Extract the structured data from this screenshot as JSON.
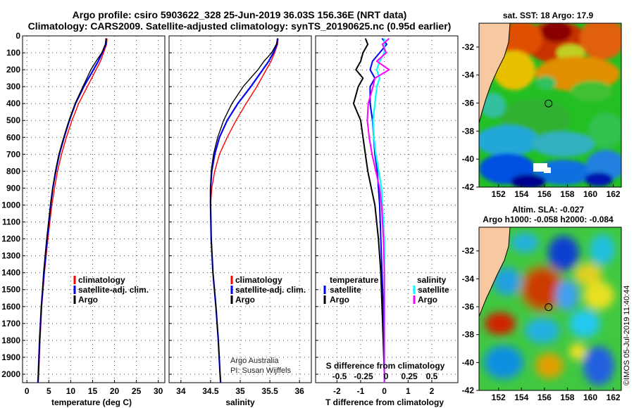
{
  "header": {
    "title_line1": "Argo profile: csiro 5903622_328 25-Jun-2019 36.03S 156.36E (NRT data)",
    "title_line2": "Climatology: CARS2009. Satellite-adjusted climatology: synTS_20190625.nc (0.95d earlier)"
  },
  "colors": {
    "climatology": "#ff0000",
    "satellite": "#0000ff",
    "argo": "#000000",
    "sal_satellite": "#00ffff",
    "sal_argo": "#ff00ff",
    "land": "#f7c9a0"
  },
  "chart_data": [
    {
      "type": "line",
      "name": "temperature",
      "xlabel": "temperature (deg C)",
      "xlim": [
        -1,
        31.5
      ],
      "xticks": [
        0,
        5,
        10,
        15,
        20,
        25,
        30
      ],
      "ylim": [
        2050,
        0
      ],
      "yticks": [
        0,
        100,
        200,
        300,
        400,
        500,
        600,
        700,
        800,
        900,
        1000,
        1100,
        1200,
        1300,
        1400,
        1500,
        1600,
        1700,
        1800,
        1900,
        2000
      ],
      "legend": [
        "climatology",
        "satellite-adj. clim.",
        "Argo"
      ],
      "series": [
        {
          "name": "climatology",
          "depth": [
            15,
            50,
            100,
            150,
            200,
            300,
            400,
            500,
            600,
            700,
            800,
            900,
            1000,
            1200,
            1400,
            1600,
            1800,
            2000,
            2050
          ],
          "values": [
            18.3,
            18.2,
            17.5,
            16.8,
            15.8,
            13.8,
            11.8,
            10.3,
            9.0,
            7.9,
            7.0,
            6.3,
            5.7,
            4.8,
            4.0,
            3.4,
            3.0,
            2.7,
            2.6
          ]
        },
        {
          "name": "satellite-adj. clim.",
          "depth": [
            15,
            50,
            100,
            150,
            200,
            300,
            400,
            500,
            600,
            700,
            800,
            900,
            1000,
            1200,
            1400,
            1600,
            1800,
            2000,
            2050
          ],
          "values": [
            18.1,
            18.0,
            17.2,
            16.3,
            15.2,
            13.0,
            11.1,
            9.7,
            8.5,
            7.4,
            6.6,
            5.9,
            5.4,
            4.6,
            3.9,
            3.3,
            2.9,
            2.6,
            2.5
          ]
        },
        {
          "name": "Argo",
          "depth": [
            15,
            50,
            100,
            150,
            200,
            300,
            400,
            500,
            600,
            700,
            800,
            900,
            1000,
            1200,
            1400,
            1600,
            1800,
            2000,
            2050
          ],
          "values": [
            18.1,
            17.9,
            17.1,
            15.8,
            14.6,
            12.8,
            11.0,
            9.6,
            8.4,
            7.3,
            6.5,
            5.9,
            5.4,
            4.5,
            3.8,
            3.3,
            2.9,
            2.6,
            2.5
          ]
        }
      ]
    },
    {
      "type": "line",
      "name": "salinity",
      "xlabel": "salinity",
      "xlim": [
        33.8,
        36.2
      ],
      "xticks": [
        34,
        34.5,
        35,
        35.5,
        36
      ],
      "ylim": [
        2050,
        0
      ],
      "legend": [
        "climatology",
        "satellite-adj. clim.",
        "Argo"
      ],
      "credit_line1": "Argo Australia",
      "credit_line2": "PI: Susan Wijffels",
      "series": [
        {
          "name": "climatology",
          "depth": [
            15,
            50,
            100,
            150,
            200,
            300,
            400,
            500,
            600,
            700,
            800,
            900,
            1000,
            1200,
            1400,
            1600,
            1800,
            2000,
            2050
          ],
          "values": [
            35.64,
            35.63,
            35.58,
            35.52,
            35.44,
            35.28,
            35.1,
            34.93,
            34.78,
            34.65,
            34.57,
            34.52,
            34.5,
            34.51,
            34.54,
            34.59,
            34.63,
            34.66,
            34.67
          ]
        },
        {
          "name": "satellite-adj. clim.",
          "depth": [
            15,
            50,
            100,
            150,
            200,
            300,
            400,
            500,
            600,
            700,
            800,
            900,
            1000,
            1200,
            1400,
            1600,
            1800,
            2000,
            2050
          ],
          "values": [
            35.63,
            35.62,
            35.56,
            35.48,
            35.38,
            35.18,
            34.96,
            34.78,
            34.65,
            34.57,
            34.52,
            34.5,
            34.5,
            34.51,
            34.54,
            34.59,
            34.63,
            34.66,
            34.67
          ]
        },
        {
          "name": "Argo",
          "depth": [
            15,
            50,
            100,
            150,
            200,
            300,
            400,
            500,
            600,
            700,
            800,
            900,
            1000,
            1200,
            1400,
            1600,
            1800,
            2000,
            2050
          ],
          "values": [
            35.63,
            35.61,
            35.53,
            35.4,
            35.3,
            35.05,
            34.86,
            34.72,
            34.62,
            34.55,
            34.51,
            34.5,
            34.5,
            34.51,
            34.54,
            34.59,
            34.63,
            34.66,
            34.67
          ]
        }
      ]
    },
    {
      "type": "line",
      "name": "differences",
      "xlabel": "T difference from climatology",
      "xlim": [
        -2.9,
        3.1
      ],
      "xticks": [
        -2,
        -1,
        0,
        1,
        2
      ],
      "xtick_labels": [
        "-2",
        "-1",
        "0",
        "1",
        "2"
      ],
      "s_axis_label": "S difference from climatology",
      "s_tick_labels": [
        "-0.5",
        "-0.25",
        "0",
        "0.25",
        "0.5"
      ],
      "ylim": [
        2050,
        0
      ],
      "legend_left_title": "temperature",
      "legend_right_title": "salinity",
      "legend_left": [
        "satellite",
        "Argo"
      ],
      "legend_right": [
        "satellite",
        "Argo"
      ],
      "series": [
        {
          "name": "T satellite",
          "depth": [
            15,
            50,
            100,
            150,
            200,
            250,
            300,
            400,
            500,
            600,
            700,
            800,
            900,
            1000,
            1200,
            1400,
            1600,
            1800,
            2000,
            2050
          ],
          "values": [
            -0.1,
            0.1,
            -0.2,
            -0.5,
            -0.6,
            -0.4,
            -0.6,
            -0.6,
            -0.5,
            -0.45,
            -0.4,
            -0.3,
            -0.25,
            -0.2,
            -0.15,
            -0.1,
            -0.05,
            -0.03,
            0.0,
            0.0
          ]
        },
        {
          "name": "T Argo",
          "depth": [
            15,
            50,
            100,
            150,
            200,
            250,
            300,
            400,
            500,
            600,
            700,
            800,
            900,
            1000,
            1200,
            1400,
            1600,
            1800,
            2000,
            2050
          ],
          "values": [
            -0.8,
            -0.7,
            -0.9,
            -1.0,
            -1.2,
            -0.9,
            -1.1,
            -1.3,
            -1.0,
            -0.9,
            -0.8,
            -0.7,
            -0.55,
            -0.4,
            -0.25,
            -0.15,
            -0.1,
            -0.05,
            0.0,
            0.0
          ]
        },
        {
          "name": "S satellite",
          "depth": [
            15,
            50,
            100,
            150,
            200,
            250,
            300,
            400,
            500,
            600,
            700,
            800,
            900,
            1000,
            1200,
            1400,
            1600,
            1800,
            2000,
            2050
          ],
          "values": [
            0.0,
            0.0,
            0.0,
            -0.05,
            -0.08,
            -0.05,
            -0.08,
            -0.1,
            -0.12,
            -0.11,
            -0.09,
            -0.06,
            -0.03,
            -0.02,
            0.0,
            0.0,
            0.0,
            0.0,
            0.0,
            0.0
          ]
        },
        {
          "name": "S Argo",
          "depth": [
            15,
            50,
            100,
            150,
            200,
            250,
            300,
            400,
            500,
            600,
            700,
            800,
            900,
            1000,
            1200,
            1400,
            1600,
            1800,
            2000,
            2050
          ],
          "values": [
            0.05,
            -0.02,
            0.02,
            -0.08,
            0.05,
            -0.1,
            -0.12,
            -0.17,
            -0.18,
            -0.16,
            -0.13,
            -0.09,
            -0.05,
            -0.03,
            -0.01,
            0.0,
            0.0,
            0.0,
            0.0,
            0.0
          ]
        }
      ]
    },
    {
      "type": "heatmap",
      "name": "sst_map",
      "title": "sat. SST: 18 Argo: 17.9",
      "xticks": [
        152,
        154,
        156,
        158,
        160,
        162
      ],
      "yticks": [
        -32,
        -34,
        -36,
        -38,
        -40,
        -42
      ],
      "xlim": [
        150.3,
        162.7
      ],
      "ylim": [
        -42,
        -30.3
      ],
      "profile_location": [
        156.36,
        -36.03
      ]
    },
    {
      "type": "heatmap",
      "name": "sla_map",
      "title_line1": "Altim. SLA: -0.027",
      "title_line2": "Argo h1000: -0.058 h2000: -0.084",
      "xticks": [
        152,
        154,
        156,
        158,
        160,
        162
      ],
      "yticks": [
        -32,
        -34,
        -36,
        -38,
        -40,
        -42
      ],
      "xlim": [
        150.3,
        162.7
      ],
      "ylim": [
        -42,
        -30.3
      ],
      "profile_location": [
        156.36,
        -36.03
      ]
    }
  ],
  "footer": {
    "timestamp": "©IMOS 05-Jul-2019 11:40:44"
  }
}
